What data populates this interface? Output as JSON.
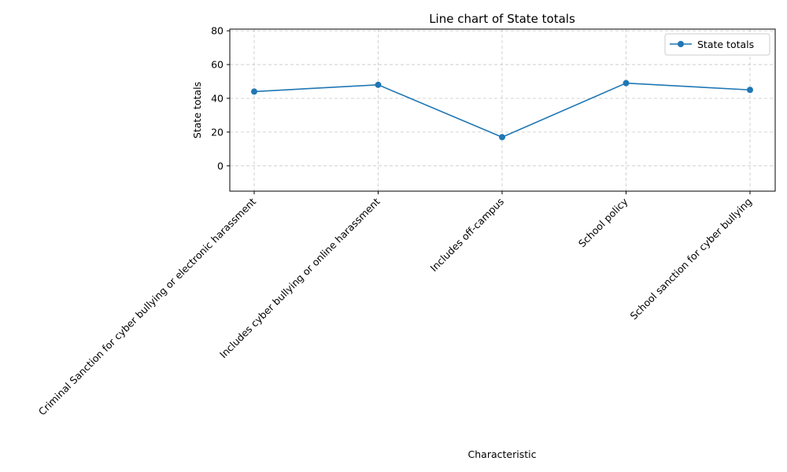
{
  "chart_data": {
    "type": "line",
    "title": "Line chart of State totals",
    "xlabel": "Characteristic",
    "ylabel": "State totals",
    "categories": [
      "Criminal Sanction for cyber bullying or electronic harassment",
      "Includes cyber bullying or online harassment",
      "Includes off-campus",
      "School policy",
      "School sanction for cyber bullying"
    ],
    "series": [
      {
        "name": "State totals",
        "values": [
          44,
          48,
          17,
          49,
          45
        ],
        "color": "#1f77b4"
      }
    ],
    "ylim": [
      -15,
      81
    ],
    "yticks": [
      0,
      20,
      40,
      60,
      80
    ],
    "grid": true,
    "legend_position": "top-right"
  }
}
